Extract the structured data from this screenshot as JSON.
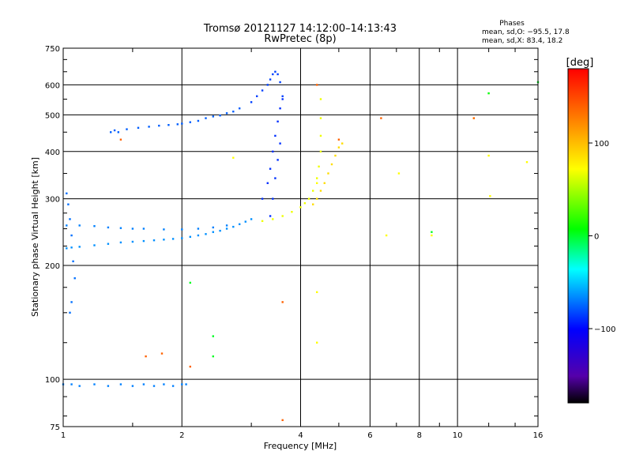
{
  "chart_data": {
    "type": "scatter",
    "title": "Tromsø 20121127 14:12:00–14:13:43",
    "subtitle": "RwPretec (8p)",
    "phases": {
      "heading": "Phases",
      "line_o": "mean, sd,O: −95.5, 17.8",
      "line_x": "mean, sd,X:  83.4, 18.2"
    },
    "xlabel": "Frequency [MHz]",
    "ylabel": "Stationary phase Virtual Height [km]",
    "x_scale": "log",
    "y_scale": "log",
    "xlim": [
      1,
      16
    ],
    "ylim": [
      75,
      750
    ],
    "x_ticks": [
      1,
      2,
      4,
      6,
      8,
      10,
      16
    ],
    "x_tick_labels": [
      "1",
      "2",
      "4",
      "6",
      "8",
      "10",
      "16"
    ],
    "y_ticks": [
      75,
      100,
      200,
      300,
      400,
      500,
      600,
      750
    ],
    "y_tick_labels": [
      "75",
      "100",
      "200",
      "300",
      "400",
      "500",
      "600",
      "750"
    ],
    "grid": true,
    "colorbar": {
      "label": "[deg]",
      "min": -180,
      "max": 180,
      "ticks": [
        100,
        0,
        -100
      ],
      "tick_labels": [
        "100",
        "0",
        "−100"
      ],
      "colormap": "rainbow"
    },
    "series": [
      {
        "name": "",
        "phase": -95,
        "x": [
          1.02,
          1.05,
          1.1,
          1.2,
          1.3,
          1.4,
          1.5,
          1.6,
          1.7,
          1.8,
          1.9,
          2.0,
          2.1,
          2.2,
          2.3,
          2.4,
          2.5,
          2.6,
          2.7,
          2.8,
          2.9,
          3.0
        ],
        "y": [
          222,
          223,
          224,
          226,
          228,
          230,
          231,
          232,
          233,
          234,
          235,
          236,
          238,
          240,
          242,
          245,
          247,
          250,
          253,
          257,
          261,
          265
        ]
      },
      {
        "name": "",
        "phase": -100,
        "x": [
          1.02,
          1.1,
          1.2,
          1.3,
          1.4,
          1.5,
          1.6,
          1.8,
          2.0,
          2.2,
          2.4,
          2.6
        ],
        "y": [
          255,
          255,
          254,
          252,
          251,
          250,
          250,
          249,
          249,
          250,
          252,
          255
        ]
      },
      {
        "name": "",
        "phase": -105,
        "x": [
          1.02,
          1.03,
          1.04,
          1.05,
          1.06,
          1.07,
          1.05,
          1.04
        ],
        "y": [
          310,
          290,
          265,
          240,
          205,
          185,
          160,
          150
        ]
      },
      {
        "name": "",
        "phase": -110,
        "x": [
          1.32,
          1.35,
          1.38,
          1.45,
          1.55,
          1.65,
          1.75,
          1.85,
          1.95,
          2.0,
          2.1,
          2.2,
          2.3,
          2.4,
          2.5,
          2.6,
          2.7,
          2.8
        ],
        "y": [
          450,
          455,
          450,
          458,
          462,
          465,
          468,
          470,
          472,
          474,
          478,
          482,
          490,
          495,
          498,
          505,
          510,
          520
        ]
      },
      {
        "name": "",
        "phase": -120,
        "x": [
          3.0,
          3.1,
          3.2,
          3.3,
          3.35,
          3.4,
          3.45,
          3.5,
          3.55,
          3.6
        ],
        "y": [
          540,
          560,
          580,
          600,
          620,
          640,
          650,
          640,
          610,
          560
        ]
      },
      {
        "name": "",
        "phase": -125,
        "x": [
          3.2,
          3.3,
          3.35,
          3.4,
          3.45,
          3.5,
          3.55,
          3.6,
          3.35,
          3.4,
          3.45,
          3.5,
          3.55
        ],
        "y": [
          300,
          330,
          360,
          400,
          440,
          480,
          520,
          550,
          270,
          300,
          340,
          380,
          420
        ]
      },
      {
        "name": "",
        "phase": 95,
        "x": [
          3.2,
          3.4,
          3.6,
          3.8,
          4.0,
          4.1,
          4.2,
          4.3,
          4.4,
          4.45,
          4.5,
          4.5,
          4.5,
          4.5
        ],
        "y": [
          262,
          265,
          270,
          277,
          285,
          292,
          300,
          315,
          340,
          365,
          400,
          440,
          490,
          550
        ]
      },
      {
        "name": "",
        "phase": 110,
        "x": [
          4.3,
          4.4,
          4.5,
          4.6,
          4.7,
          4.8,
          4.9,
          5.0,
          5.1
        ],
        "y": [
          290,
          300,
          315,
          330,
          350,
          370,
          390,
          410,
          420
        ]
      },
      {
        "name": "",
        "phase": -100,
        "x": [
          1.0,
          1.05,
          1.1,
          1.2,
          1.3,
          1.4,
          1.5,
          1.6,
          1.7,
          1.8,
          1.9,
          2.0,
          2.05
        ],
        "y": [
          97,
          97,
          96,
          97,
          96,
          97,
          96,
          97,
          96,
          97,
          96,
          97,
          97
        ]
      },
      {
        "name": "",
        "phase": 100,
        "x": [
          2.7,
          4.4,
          4.4,
          4.4,
          6.6,
          7.1,
          8.6,
          11.0,
          12.0,
          12.0,
          12.1,
          15.0
        ],
        "y": [
          385,
          330,
          170,
          125,
          240,
          350,
          240,
          490,
          570,
          390,
          305,
          375
        ]
      },
      {
        "name": "",
        "phase": 150,
        "x": [
          1.62,
          1.78,
          1.4,
          4.4,
          5.0,
          6.4,
          11.0,
          3.6,
          3.6,
          2.1
        ],
        "y": [
          115,
          117,
          430,
          600,
          430,
          490,
          490,
          160,
          78,
          108
        ]
      },
      {
        "name": "",
        "phase": 10,
        "x": [
          2.1,
          2.4,
          2.4,
          12.0,
          16.0,
          8.6
        ],
        "y": [
          180,
          130,
          115,
          570,
          610,
          245
        ]
      }
    ]
  }
}
